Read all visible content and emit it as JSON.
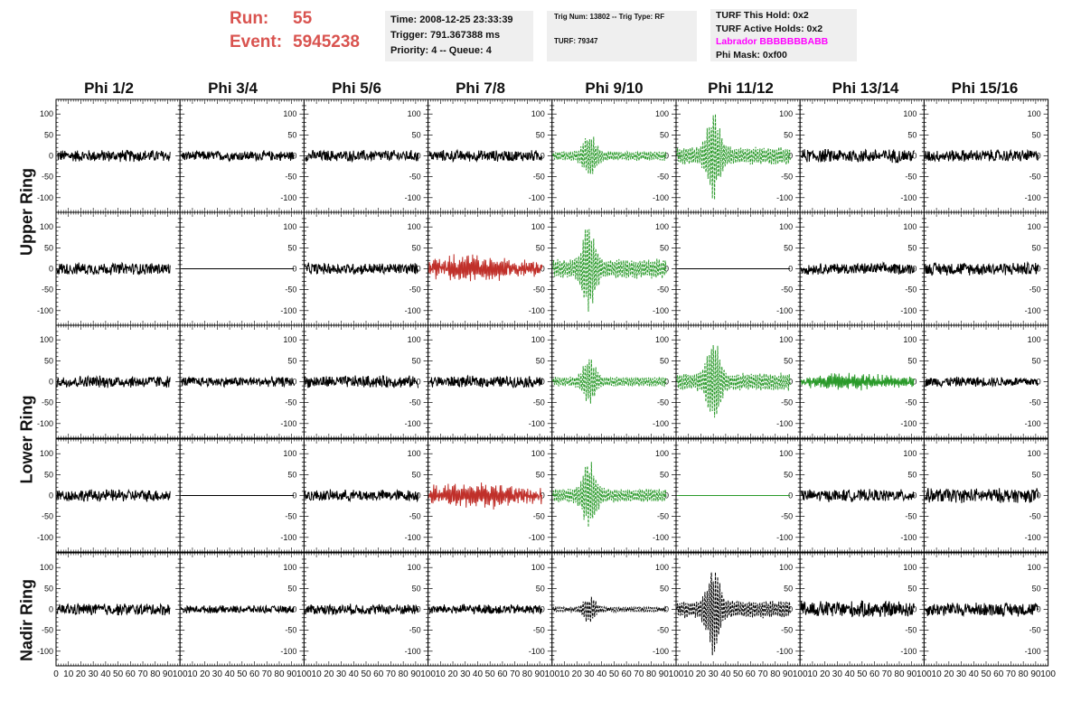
{
  "header": {
    "run_label": "Run:",
    "run_value": "55",
    "event_label": "Event:",
    "event_value": "5945238"
  },
  "info": {
    "time": "Time: 2008-12-25 23:33:39",
    "trigger": "Trigger: 791.367388 ms",
    "priority": "Priority: 4 -- Queue: 4",
    "trig_num": "Trig Num: 13802 -- Trig Type: RF",
    "turf": "TURF: 79347",
    "turf_this_hold": "TURF This Hold: 0x2",
    "turf_active_holds": "TURF Active Holds: 0x2",
    "labrador": "Labrador BBBBBBBABB",
    "phi_mask": "Phi Mask: 0xf00"
  },
  "columns": [
    "Phi 1/2",
    "Phi 3/4",
    "Phi 5/6",
    "Phi 7/8",
    "Phi 9/10",
    "Phi 11/12",
    "Phi 13/14",
    "Phi 15/16"
  ],
  "rings": [
    "Upper Ring",
    "Lower Ring",
    "Nadir Ring"
  ],
  "y_ticks": [
    "100",
    "50",
    "0",
    "-50",
    "-100"
  ],
  "x_ticks": [
    "0",
    "10",
    "20",
    "30",
    "40",
    "50",
    "60",
    "70",
    "80",
    "90",
    "100"
  ],
  "colors": {
    "header_red": "#d9534f",
    "magenta": "#ff00ff",
    "trace_black": "#000000",
    "trace_red": "#c0302a",
    "trace_green": "#2a9a2a",
    "panel_bg": "#efefef"
  },
  "plot_rows": [
    {
      "traces": [
        {
          "style": "normal",
          "color": "black",
          "amp": 16
        },
        {
          "style": "normal",
          "color": "black",
          "amp": 13
        },
        {
          "style": "normal",
          "color": "black",
          "amp": 15
        },
        {
          "style": "normal",
          "color": "black",
          "amp": 15
        },
        {
          "style": "pulse",
          "color": "green",
          "amp": 55,
          "dashed": true
        },
        {
          "style": "pulse",
          "color": "green",
          "amp": 100,
          "dashed": true
        },
        {
          "style": "normal",
          "color": "black",
          "amp": 18
        },
        {
          "style": "normal",
          "color": "black",
          "amp": 16
        }
      ]
    },
    {
      "traces": [
        {
          "style": "normal",
          "color": "black",
          "amp": 16
        },
        {
          "style": "flat",
          "color": "black",
          "amp": 0
        },
        {
          "style": "normal",
          "color": "black",
          "amp": 15
        },
        {
          "style": "burst",
          "color": "red",
          "amp": 28
        },
        {
          "style": "pulse",
          "color": "green",
          "amp": 110,
          "dashed": true
        },
        {
          "style": "flat",
          "color": "black",
          "amp": 0
        },
        {
          "style": "normal",
          "color": "black",
          "amp": 15
        },
        {
          "style": "normal",
          "color": "black",
          "amp": 17
        }
      ]
    },
    {
      "traces": [
        {
          "style": "normal",
          "color": "black",
          "amp": 16
        },
        {
          "style": "normal",
          "color": "black",
          "amp": 13
        },
        {
          "style": "normal",
          "color": "black",
          "amp": 16
        },
        {
          "style": "normal",
          "color": "black",
          "amp": 15
        },
        {
          "style": "pulse",
          "color": "green",
          "amp": 55,
          "dashed": true
        },
        {
          "style": "pulse",
          "color": "green",
          "amp": 100,
          "dashed": true
        },
        {
          "style": "burst",
          "color": "green",
          "amp": 18
        },
        {
          "style": "normal",
          "color": "black",
          "amp": 13
        }
      ]
    },
    {
      "traces": [
        {
          "style": "normal",
          "color": "black",
          "amp": 16
        },
        {
          "style": "flat",
          "color": "black",
          "amp": 0
        },
        {
          "style": "normal",
          "color": "black",
          "amp": 15
        },
        {
          "style": "burst",
          "color": "red",
          "amp": 28
        },
        {
          "style": "pulse",
          "color": "green",
          "amp": 80,
          "dashed": true
        },
        {
          "style": "flat",
          "color": "green",
          "amp": 0
        },
        {
          "style": "normal",
          "color": "black",
          "amp": 16
        },
        {
          "style": "normal",
          "color": "black",
          "amp": 19
        }
      ]
    },
    {
      "traces": [
        {
          "style": "normal",
          "color": "black",
          "amp": 16
        },
        {
          "style": "normal",
          "color": "black",
          "amp": 10
        },
        {
          "style": "normal",
          "color": "black",
          "amp": 14
        },
        {
          "style": "normal",
          "color": "black",
          "amp": 13
        },
        {
          "style": "pulse",
          "color": "black",
          "amp": 30,
          "dashed": true
        },
        {
          "style": "pulse",
          "color": "black",
          "amp": 100,
          "dashed": true
        },
        {
          "style": "normal",
          "color": "black",
          "amp": 22
        },
        {
          "style": "normal",
          "color": "black",
          "amp": 18
        }
      ]
    }
  ]
}
